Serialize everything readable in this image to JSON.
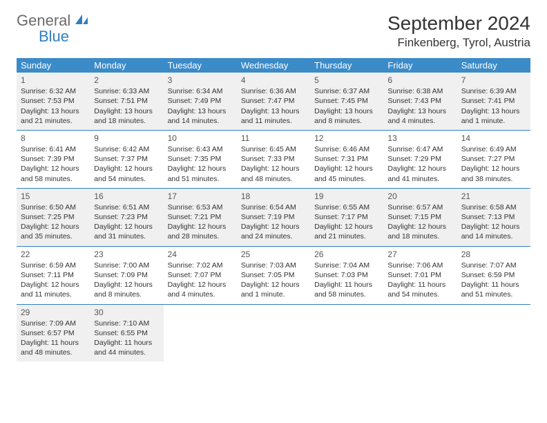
{
  "logo": {
    "line1": "General",
    "line2": "Blue"
  },
  "title": "September 2024",
  "location": "Finkenberg, Tyrol, Austria",
  "colors": {
    "header_bg": "#3b8bc9",
    "header_text": "#ffffff",
    "row_shade": "#f0f0f0",
    "border": "#2f7fc2",
    "logo_gray": "#6b6b6b",
    "logo_blue": "#2f7fc2"
  },
  "weekdays": [
    "Sunday",
    "Monday",
    "Tuesday",
    "Wednesday",
    "Thursday",
    "Friday",
    "Saturday"
  ],
  "weeks": [
    [
      {
        "day": "1",
        "sunrise": "Sunrise: 6:32 AM",
        "sunset": "Sunset: 7:53 PM",
        "daylight": "Daylight: 13 hours and 21 minutes."
      },
      {
        "day": "2",
        "sunrise": "Sunrise: 6:33 AM",
        "sunset": "Sunset: 7:51 PM",
        "daylight": "Daylight: 13 hours and 18 minutes."
      },
      {
        "day": "3",
        "sunrise": "Sunrise: 6:34 AM",
        "sunset": "Sunset: 7:49 PM",
        "daylight": "Daylight: 13 hours and 14 minutes."
      },
      {
        "day": "4",
        "sunrise": "Sunrise: 6:36 AM",
        "sunset": "Sunset: 7:47 PM",
        "daylight": "Daylight: 13 hours and 11 minutes."
      },
      {
        "day": "5",
        "sunrise": "Sunrise: 6:37 AM",
        "sunset": "Sunset: 7:45 PM",
        "daylight": "Daylight: 13 hours and 8 minutes."
      },
      {
        "day": "6",
        "sunrise": "Sunrise: 6:38 AM",
        "sunset": "Sunset: 7:43 PM",
        "daylight": "Daylight: 13 hours and 4 minutes."
      },
      {
        "day": "7",
        "sunrise": "Sunrise: 6:39 AM",
        "sunset": "Sunset: 7:41 PM",
        "daylight": "Daylight: 13 hours and 1 minute."
      }
    ],
    [
      {
        "day": "8",
        "sunrise": "Sunrise: 6:41 AM",
        "sunset": "Sunset: 7:39 PM",
        "daylight": "Daylight: 12 hours and 58 minutes."
      },
      {
        "day": "9",
        "sunrise": "Sunrise: 6:42 AM",
        "sunset": "Sunset: 7:37 PM",
        "daylight": "Daylight: 12 hours and 54 minutes."
      },
      {
        "day": "10",
        "sunrise": "Sunrise: 6:43 AM",
        "sunset": "Sunset: 7:35 PM",
        "daylight": "Daylight: 12 hours and 51 minutes."
      },
      {
        "day": "11",
        "sunrise": "Sunrise: 6:45 AM",
        "sunset": "Sunset: 7:33 PM",
        "daylight": "Daylight: 12 hours and 48 minutes."
      },
      {
        "day": "12",
        "sunrise": "Sunrise: 6:46 AM",
        "sunset": "Sunset: 7:31 PM",
        "daylight": "Daylight: 12 hours and 45 minutes."
      },
      {
        "day": "13",
        "sunrise": "Sunrise: 6:47 AM",
        "sunset": "Sunset: 7:29 PM",
        "daylight": "Daylight: 12 hours and 41 minutes."
      },
      {
        "day": "14",
        "sunrise": "Sunrise: 6:49 AM",
        "sunset": "Sunset: 7:27 PM",
        "daylight": "Daylight: 12 hours and 38 minutes."
      }
    ],
    [
      {
        "day": "15",
        "sunrise": "Sunrise: 6:50 AM",
        "sunset": "Sunset: 7:25 PM",
        "daylight": "Daylight: 12 hours and 35 minutes."
      },
      {
        "day": "16",
        "sunrise": "Sunrise: 6:51 AM",
        "sunset": "Sunset: 7:23 PM",
        "daylight": "Daylight: 12 hours and 31 minutes."
      },
      {
        "day": "17",
        "sunrise": "Sunrise: 6:53 AM",
        "sunset": "Sunset: 7:21 PM",
        "daylight": "Daylight: 12 hours and 28 minutes."
      },
      {
        "day": "18",
        "sunrise": "Sunrise: 6:54 AM",
        "sunset": "Sunset: 7:19 PM",
        "daylight": "Daylight: 12 hours and 24 minutes."
      },
      {
        "day": "19",
        "sunrise": "Sunrise: 6:55 AM",
        "sunset": "Sunset: 7:17 PM",
        "daylight": "Daylight: 12 hours and 21 minutes."
      },
      {
        "day": "20",
        "sunrise": "Sunrise: 6:57 AM",
        "sunset": "Sunset: 7:15 PM",
        "daylight": "Daylight: 12 hours and 18 minutes."
      },
      {
        "day": "21",
        "sunrise": "Sunrise: 6:58 AM",
        "sunset": "Sunset: 7:13 PM",
        "daylight": "Daylight: 12 hours and 14 minutes."
      }
    ],
    [
      {
        "day": "22",
        "sunrise": "Sunrise: 6:59 AM",
        "sunset": "Sunset: 7:11 PM",
        "daylight": "Daylight: 12 hours and 11 minutes."
      },
      {
        "day": "23",
        "sunrise": "Sunrise: 7:00 AM",
        "sunset": "Sunset: 7:09 PM",
        "daylight": "Daylight: 12 hours and 8 minutes."
      },
      {
        "day": "24",
        "sunrise": "Sunrise: 7:02 AM",
        "sunset": "Sunset: 7:07 PM",
        "daylight": "Daylight: 12 hours and 4 minutes."
      },
      {
        "day": "25",
        "sunrise": "Sunrise: 7:03 AM",
        "sunset": "Sunset: 7:05 PM",
        "daylight": "Daylight: 12 hours and 1 minute."
      },
      {
        "day": "26",
        "sunrise": "Sunrise: 7:04 AM",
        "sunset": "Sunset: 7:03 PM",
        "daylight": "Daylight: 11 hours and 58 minutes."
      },
      {
        "day": "27",
        "sunrise": "Sunrise: 7:06 AM",
        "sunset": "Sunset: 7:01 PM",
        "daylight": "Daylight: 11 hours and 54 minutes."
      },
      {
        "day": "28",
        "sunrise": "Sunrise: 7:07 AM",
        "sunset": "Sunset: 6:59 PM",
        "daylight": "Daylight: 11 hours and 51 minutes."
      }
    ],
    [
      {
        "day": "29",
        "sunrise": "Sunrise: 7:09 AM",
        "sunset": "Sunset: 6:57 PM",
        "daylight": "Daylight: 11 hours and 48 minutes."
      },
      {
        "day": "30",
        "sunrise": "Sunrise: 7:10 AM",
        "sunset": "Sunset: 6:55 PM",
        "daylight": "Daylight: 11 hours and 44 minutes."
      },
      null,
      null,
      null,
      null,
      null
    ]
  ]
}
